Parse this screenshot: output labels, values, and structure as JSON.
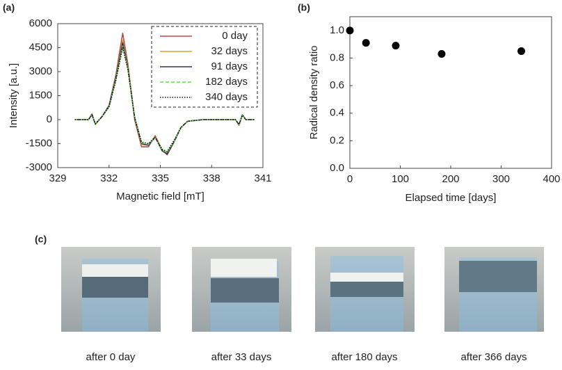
{
  "chart_data": [
    {
      "type": "line",
      "panel_label": "(a)",
      "xlabel": "Magnetic field [mT]",
      "ylabel": "Intensity [a.u.]",
      "xlim": [
        329,
        341
      ],
      "xticks": [
        329,
        332,
        335,
        338,
        341
      ],
      "ylim": [
        -3000,
        6000
      ],
      "yticks": [
        -3000,
        -1500,
        0,
        1500,
        3000,
        4500,
        6000
      ],
      "legend": "upper right",
      "legend_frame": "dashed",
      "x": [
        330,
        330.8,
        331,
        331.2,
        331.6,
        332,
        332.4,
        332.8,
        333.1,
        333.5,
        333.9,
        334.3,
        334.7,
        335.1,
        335.4,
        335.8,
        336.2,
        336.6,
        337.5,
        338.5,
        339.4,
        339.6,
        339.8,
        340,
        340.5
      ],
      "series": [
        {
          "name": "0 day",
          "color": "#b94a48",
          "style": "solid",
          "values": [
            0,
            0,
            350,
            -300,
            200,
            900,
            2800,
            5400,
            3500,
            0,
            -1700,
            -1700,
            -1000,
            -1900,
            -2200,
            -1400,
            -500,
            -100,
            0,
            0,
            0,
            -350,
            300,
            0,
            0
          ]
        },
        {
          "name": "32 days",
          "color": "#d9a520",
          "style": "solid",
          "values": [
            0,
            0,
            320,
            -280,
            200,
            850,
            2650,
            4950,
            3300,
            100,
            -1550,
            -1600,
            -1050,
            -1950,
            -2100,
            -1400,
            -500,
            -100,
            0,
            0,
            0,
            -320,
            300,
            0,
            0
          ]
        },
        {
          "name": "91 days",
          "color": "#2e3168",
          "style": "solid",
          "values": [
            0,
            0,
            320,
            -280,
            200,
            850,
            2600,
            4800,
            3250,
            100,
            -1500,
            -1600,
            -1100,
            -1950,
            -2150,
            -1400,
            -500,
            -100,
            0,
            0,
            0,
            -320,
            300,
            0,
            0
          ]
        },
        {
          "name": "182 days",
          "color": "#66dd44",
          "style": "dashed",
          "values": [
            0,
            0,
            300,
            -270,
            200,
            800,
            2500,
            4600,
            3200,
            150,
            -1450,
            -1550,
            -1100,
            -1900,
            -2050,
            -1350,
            -500,
            -100,
            0,
            0,
            0,
            -300,
            280,
            0,
            0
          ]
        },
        {
          "name": "340 days",
          "color": "#111111",
          "style": "dotted",
          "values": [
            0,
            0,
            300,
            -270,
            200,
            800,
            2450,
            4500,
            3150,
            150,
            -1400,
            -1500,
            -1100,
            -1850,
            -2000,
            -1300,
            -500,
            -100,
            0,
            0,
            0,
            -300,
            280,
            0,
            0
          ]
        }
      ]
    },
    {
      "type": "scatter",
      "panel_label": "(b)",
      "xlabel": "Elapsed time [days]",
      "ylabel": "Radical density ratio",
      "xlim": [
        0,
        400
      ],
      "xticks": [
        0,
        100,
        200,
        300,
        400
      ],
      "ylim": [
        0,
        1.1
      ],
      "yticks": [
        {
          "value": 0,
          "label": "0.0"
        },
        0.2,
        0.4,
        0.6,
        0.8,
        {
          "value": 1,
          "label": "1.0"
        }
      ],
      "color": "#000000",
      "x": [
        0,
        32,
        91,
        182,
        340
      ],
      "values": [
        1.0,
        0.91,
        0.89,
        0.83,
        0.85
      ]
    }
  ],
  "photos": {
    "panel_label": "(c)",
    "captions": [
      "after 0 day",
      "after 33 days",
      "after 180 days",
      "after 366 days"
    ]
  }
}
